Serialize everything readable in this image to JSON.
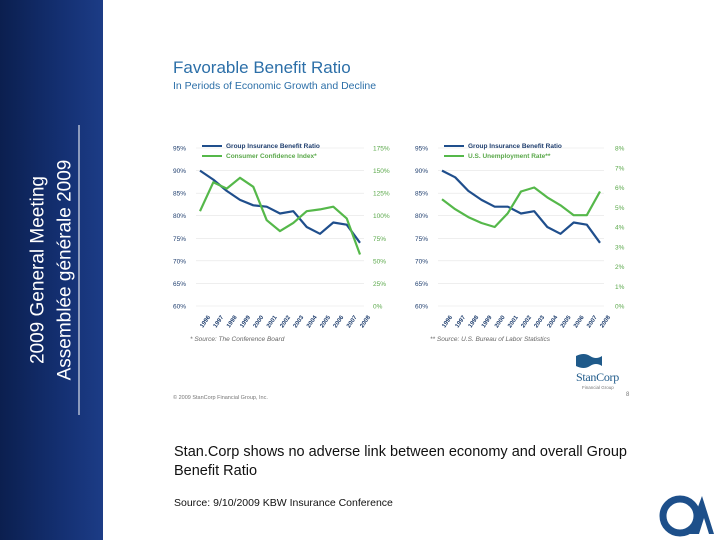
{
  "sidebar": {
    "line1": "2009 General Meeting",
    "line2": "Assemblée générale 2009"
  },
  "slide": {
    "title": "Favorable Benefit Ratio",
    "subtitle": "In Periods of Economic Growth and Decline",
    "statement": "Stan.Corp shows no adverse link between economy and overall Group Benefit Ratio",
    "source": "Source:  9/10/2009 KBW Insurance Conference"
  },
  "embedded": {
    "copyright": "© 2009 StanCorp Financial Group, Inc.",
    "page_number": "8",
    "logo_text": "StanCorp",
    "logo_sub": "Financial Group"
  },
  "colors": {
    "blue_line": "#1f4e8c",
    "green_line": "#55b84a",
    "left_axis_text": "#1f3e6e",
    "right_axis_text": "#5aa84a"
  },
  "chart_data": [
    {
      "type": "line",
      "x": [
        "1996",
        "1997",
        "1998",
        "1999",
        "2000",
        "2001",
        "2002",
        "2003",
        "2004",
        "2005",
        "2006",
        "2007",
        "2008"
      ],
      "series": [
        {
          "name": "Group Insurance Benefit Ratio",
          "axis": "left",
          "values": [
            90.0,
            88.0,
            85.5,
            83.5,
            82.3,
            82.0,
            80.5,
            81.0,
            77.5,
            76.0,
            78.5,
            78.0,
            74.0
          ]
        },
        {
          "name": "Consumer Confidence Index*",
          "axis": "right",
          "values": [
            105,
            137,
            130,
            142,
            132,
            95,
            83,
            92,
            105,
            107,
            110,
            97,
            57
          ]
        }
      ],
      "y_left_ticks": [
        "60%",
        "65%",
        "70%",
        "75%",
        "80%",
        "85%",
        "90%",
        "95%"
      ],
      "y_right_ticks": [
        "0%",
        "25%",
        "50%",
        "75%",
        "100%",
        "125%",
        "150%",
        "175%"
      ],
      "ylim_left": [
        60,
        95
      ],
      "ylim_right": [
        0,
        175
      ],
      "footnote": "* Source: The Conference Board"
    },
    {
      "type": "line",
      "x": [
        "1996",
        "1997",
        "1998",
        "1999",
        "2000",
        "2001",
        "2002",
        "2003",
        "2004",
        "2005",
        "2006",
        "2007",
        "2008"
      ],
      "series": [
        {
          "name": "Group Insurance Benefit Ratio",
          "axis": "left",
          "values": [
            90.0,
            88.5,
            85.5,
            83.5,
            82.0,
            82.0,
            80.5,
            81.0,
            77.5,
            76.0,
            78.5,
            78.0,
            74.0
          ]
        },
        {
          "name": "U.S. Unemployment Rate**",
          "axis": "right",
          "values": [
            5.4,
            4.9,
            4.5,
            4.2,
            4.0,
            4.7,
            5.8,
            6.0,
            5.5,
            5.1,
            4.6,
            4.6,
            5.8
          ]
        }
      ],
      "y_left_ticks": [
        "60%",
        "65%",
        "70%",
        "75%",
        "80%",
        "85%",
        "90%",
        "95%"
      ],
      "y_right_ticks": [
        "0%",
        "1%",
        "2%",
        "3%",
        "4%",
        "5%",
        "6%",
        "7%",
        "8%"
      ],
      "ylim_left": [
        60,
        95
      ],
      "ylim_right": [
        0,
        8
      ],
      "footnote": "** Source: U.S. Bureau of Labor Statistics"
    }
  ]
}
